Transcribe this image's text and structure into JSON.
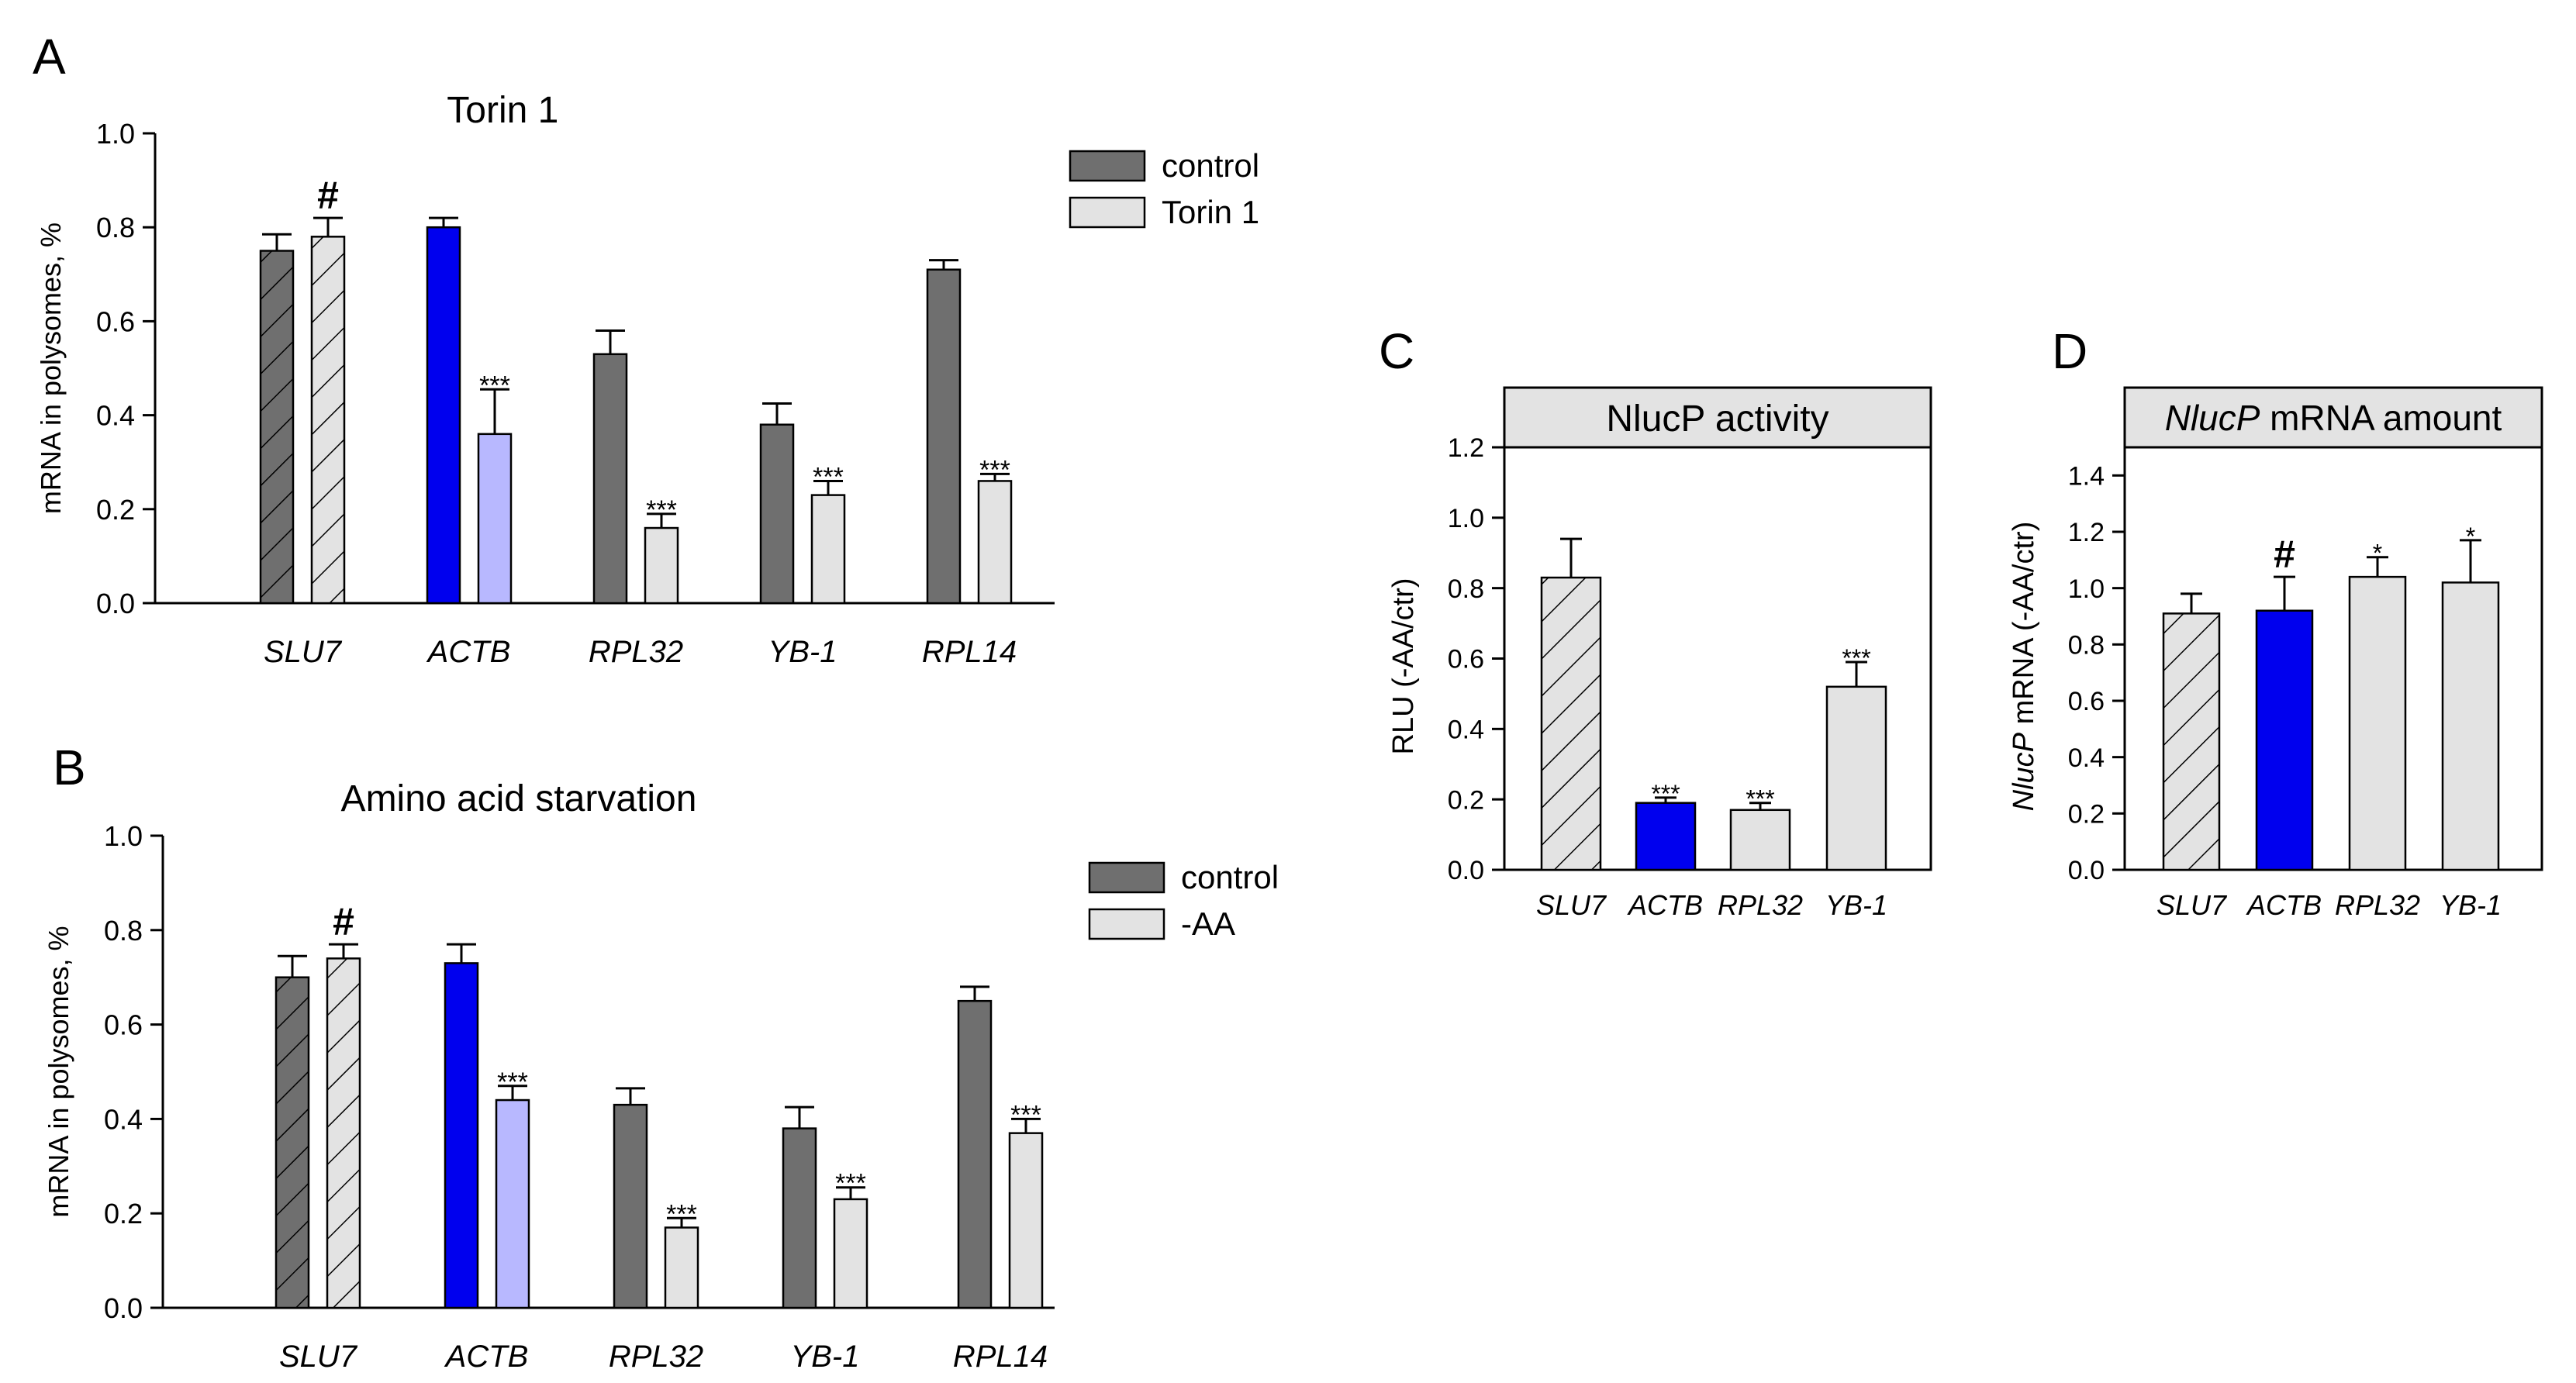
{
  "colors": {
    "control": "#6f6f6f",
    "treated": "#e3e3e3",
    "actb_control": "#0000ee",
    "actb_treated": "#b8b8ff",
    "header_bg": "#e3e3e3",
    "border": "#000000"
  },
  "chart_data": [
    {
      "id": "A",
      "panel_label": "A",
      "type": "bar",
      "title": "Torin 1",
      "ylabel": "mRNA in polysomes, %",
      "ylim": [
        0,
        1.0
      ],
      "yticks": [
        "0.0",
        "0.2",
        "0.4",
        "0.6",
        "0.8",
        "1.0"
      ],
      "categories": [
        "SLU7",
        "ACTB",
        "RPL32",
        "YB-1",
        "RPL14"
      ],
      "legend_position": "top-right",
      "series": [
        {
          "name": "control",
          "values": [
            0.75,
            0.8,
            0.53,
            0.38,
            0.71
          ],
          "errors": [
            0.035,
            0.02,
            0.05,
            0.045,
            0.02
          ],
          "annotations": [
            "",
            "",
            "",
            "",
            ""
          ]
        },
        {
          "name": "Torin 1",
          "values": [
            0.78,
            0.36,
            0.16,
            0.23,
            0.26
          ],
          "errors": [
            0.04,
            0.095,
            0.03,
            0.03,
            0.015
          ],
          "annotations": [
            "#",
            "***",
            "***",
            "***",
            "***"
          ]
        }
      ]
    },
    {
      "id": "B",
      "panel_label": "B",
      "type": "bar",
      "title": "Amino acid starvation",
      "ylabel": "mRNA in polysomes, %",
      "ylim": [
        0,
        1.0
      ],
      "yticks": [
        "0.0",
        "0.2",
        "0.4",
        "0.6",
        "0.8",
        "1.0"
      ],
      "categories": [
        "SLU7",
        "ACTB",
        "RPL32",
        "YB-1",
        "RPL14"
      ],
      "legend_position": "top-right",
      "series": [
        {
          "name": "control",
          "values": [
            0.7,
            0.73,
            0.43,
            0.38,
            0.65
          ],
          "errors": [
            0.045,
            0.04,
            0.035,
            0.045,
            0.03
          ],
          "annotations": [
            "",
            "",
            "",
            "",
            ""
          ]
        },
        {
          "name": "-AA",
          "values": [
            0.74,
            0.44,
            0.17,
            0.23,
            0.37
          ],
          "errors": [
            0.03,
            0.03,
            0.02,
            0.025,
            0.03
          ],
          "annotations": [
            "#",
            "***",
            "***",
            "***",
            "***"
          ]
        }
      ]
    },
    {
      "id": "C",
      "panel_label": "C",
      "type": "bar",
      "title": "NlucP activity",
      "ylabel": "RLU (-AA/ctr)",
      "ylim": [
        0,
        1.2
      ],
      "yticks": [
        "0.0",
        "0.2",
        "0.4",
        "0.6",
        "0.8",
        "1.0",
        "1.2"
      ],
      "categories": [
        "SLU7",
        "ACTB",
        "RPL32",
        "YB-1"
      ],
      "values": [
        0.83,
        0.19,
        0.17,
        0.52
      ],
      "errors": [
        0.11,
        0.015,
        0.02,
        0.07
      ],
      "annotations": [
        "",
        "***",
        "***",
        "***"
      ]
    },
    {
      "id": "D",
      "panel_label": "D",
      "type": "bar",
      "title_italic": "NlucP",
      "title_rest": " mRNA amount",
      "ylabel_italic": "NlucP",
      "ylabel_rest": " mRNA (-AA/ctr)",
      "ylim": [
        0,
        1.5
      ],
      "yticks": [
        "0.0",
        "0.2",
        "0.4",
        "0.6",
        "0.8",
        "1.0",
        "1.2",
        "1.4"
      ],
      "categories": [
        "SLU7",
        "ACTB",
        "RPL32",
        "YB-1"
      ],
      "values": [
        0.91,
        0.92,
        1.04,
        1.02
      ],
      "errors": [
        0.07,
        0.12,
        0.07,
        0.15
      ],
      "annotations": [
        "",
        "#",
        "*",
        "*"
      ]
    }
  ]
}
